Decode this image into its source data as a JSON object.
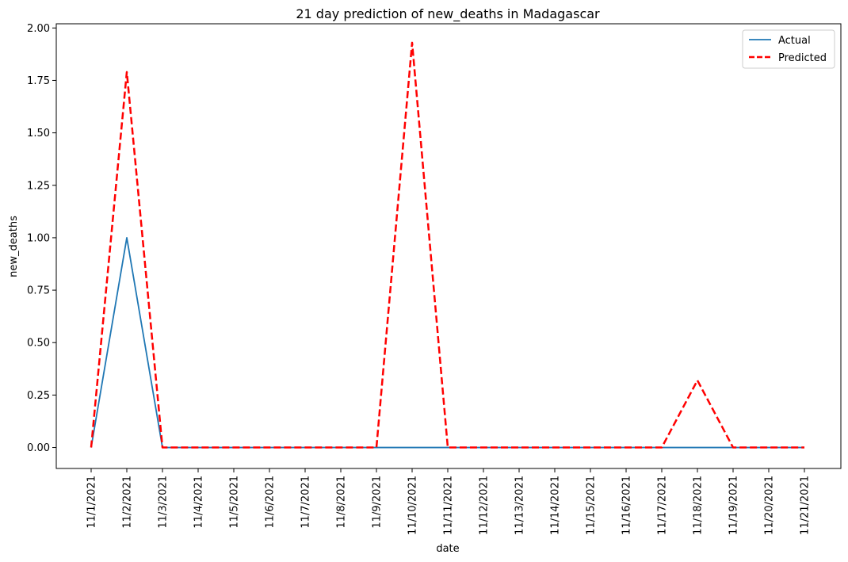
{
  "chart_data": {
    "type": "line",
    "title": "21 day prediction of new_deaths in Madagascar",
    "xlabel": "date",
    "ylabel": "new_deaths",
    "categories": [
      "11/1/2021",
      "11/2/2021",
      "11/3/2021",
      "11/4/2021",
      "11/5/2021",
      "11/6/2021",
      "11/7/2021",
      "11/8/2021",
      "11/9/2021",
      "11/10/2021",
      "11/11/2021",
      "11/12/2021",
      "11/13/2021",
      "11/14/2021",
      "11/15/2021",
      "11/16/2021",
      "11/17/2021",
      "11/18/2021",
      "11/19/2021",
      "11/20/2021",
      "11/21/2021"
    ],
    "ylim": [
      -0.1,
      2.02
    ],
    "yticks": [
      "0.00",
      "0.25",
      "0.50",
      "0.75",
      "1.00",
      "1.25",
      "1.50",
      "1.75",
      "2.00"
    ],
    "grid": false,
    "legend_position": "top-right",
    "series": [
      {
        "name": "Actual",
        "color": "#1f77b4",
        "style": "solid",
        "values": [
          0,
          1,
          0,
          0,
          0,
          0,
          0,
          0,
          0,
          0,
          0,
          0,
          0,
          0,
          0,
          0,
          0,
          0,
          0,
          0,
          0
        ]
      },
      {
        "name": "Predicted",
        "color": "#ff0000",
        "style": "dashed",
        "values": [
          0,
          1.79,
          0,
          0,
          0,
          0,
          0,
          0,
          0,
          1.93,
          0,
          0,
          0,
          0,
          0,
          0,
          0,
          0.32,
          0,
          0,
          0
        ]
      }
    ]
  }
}
